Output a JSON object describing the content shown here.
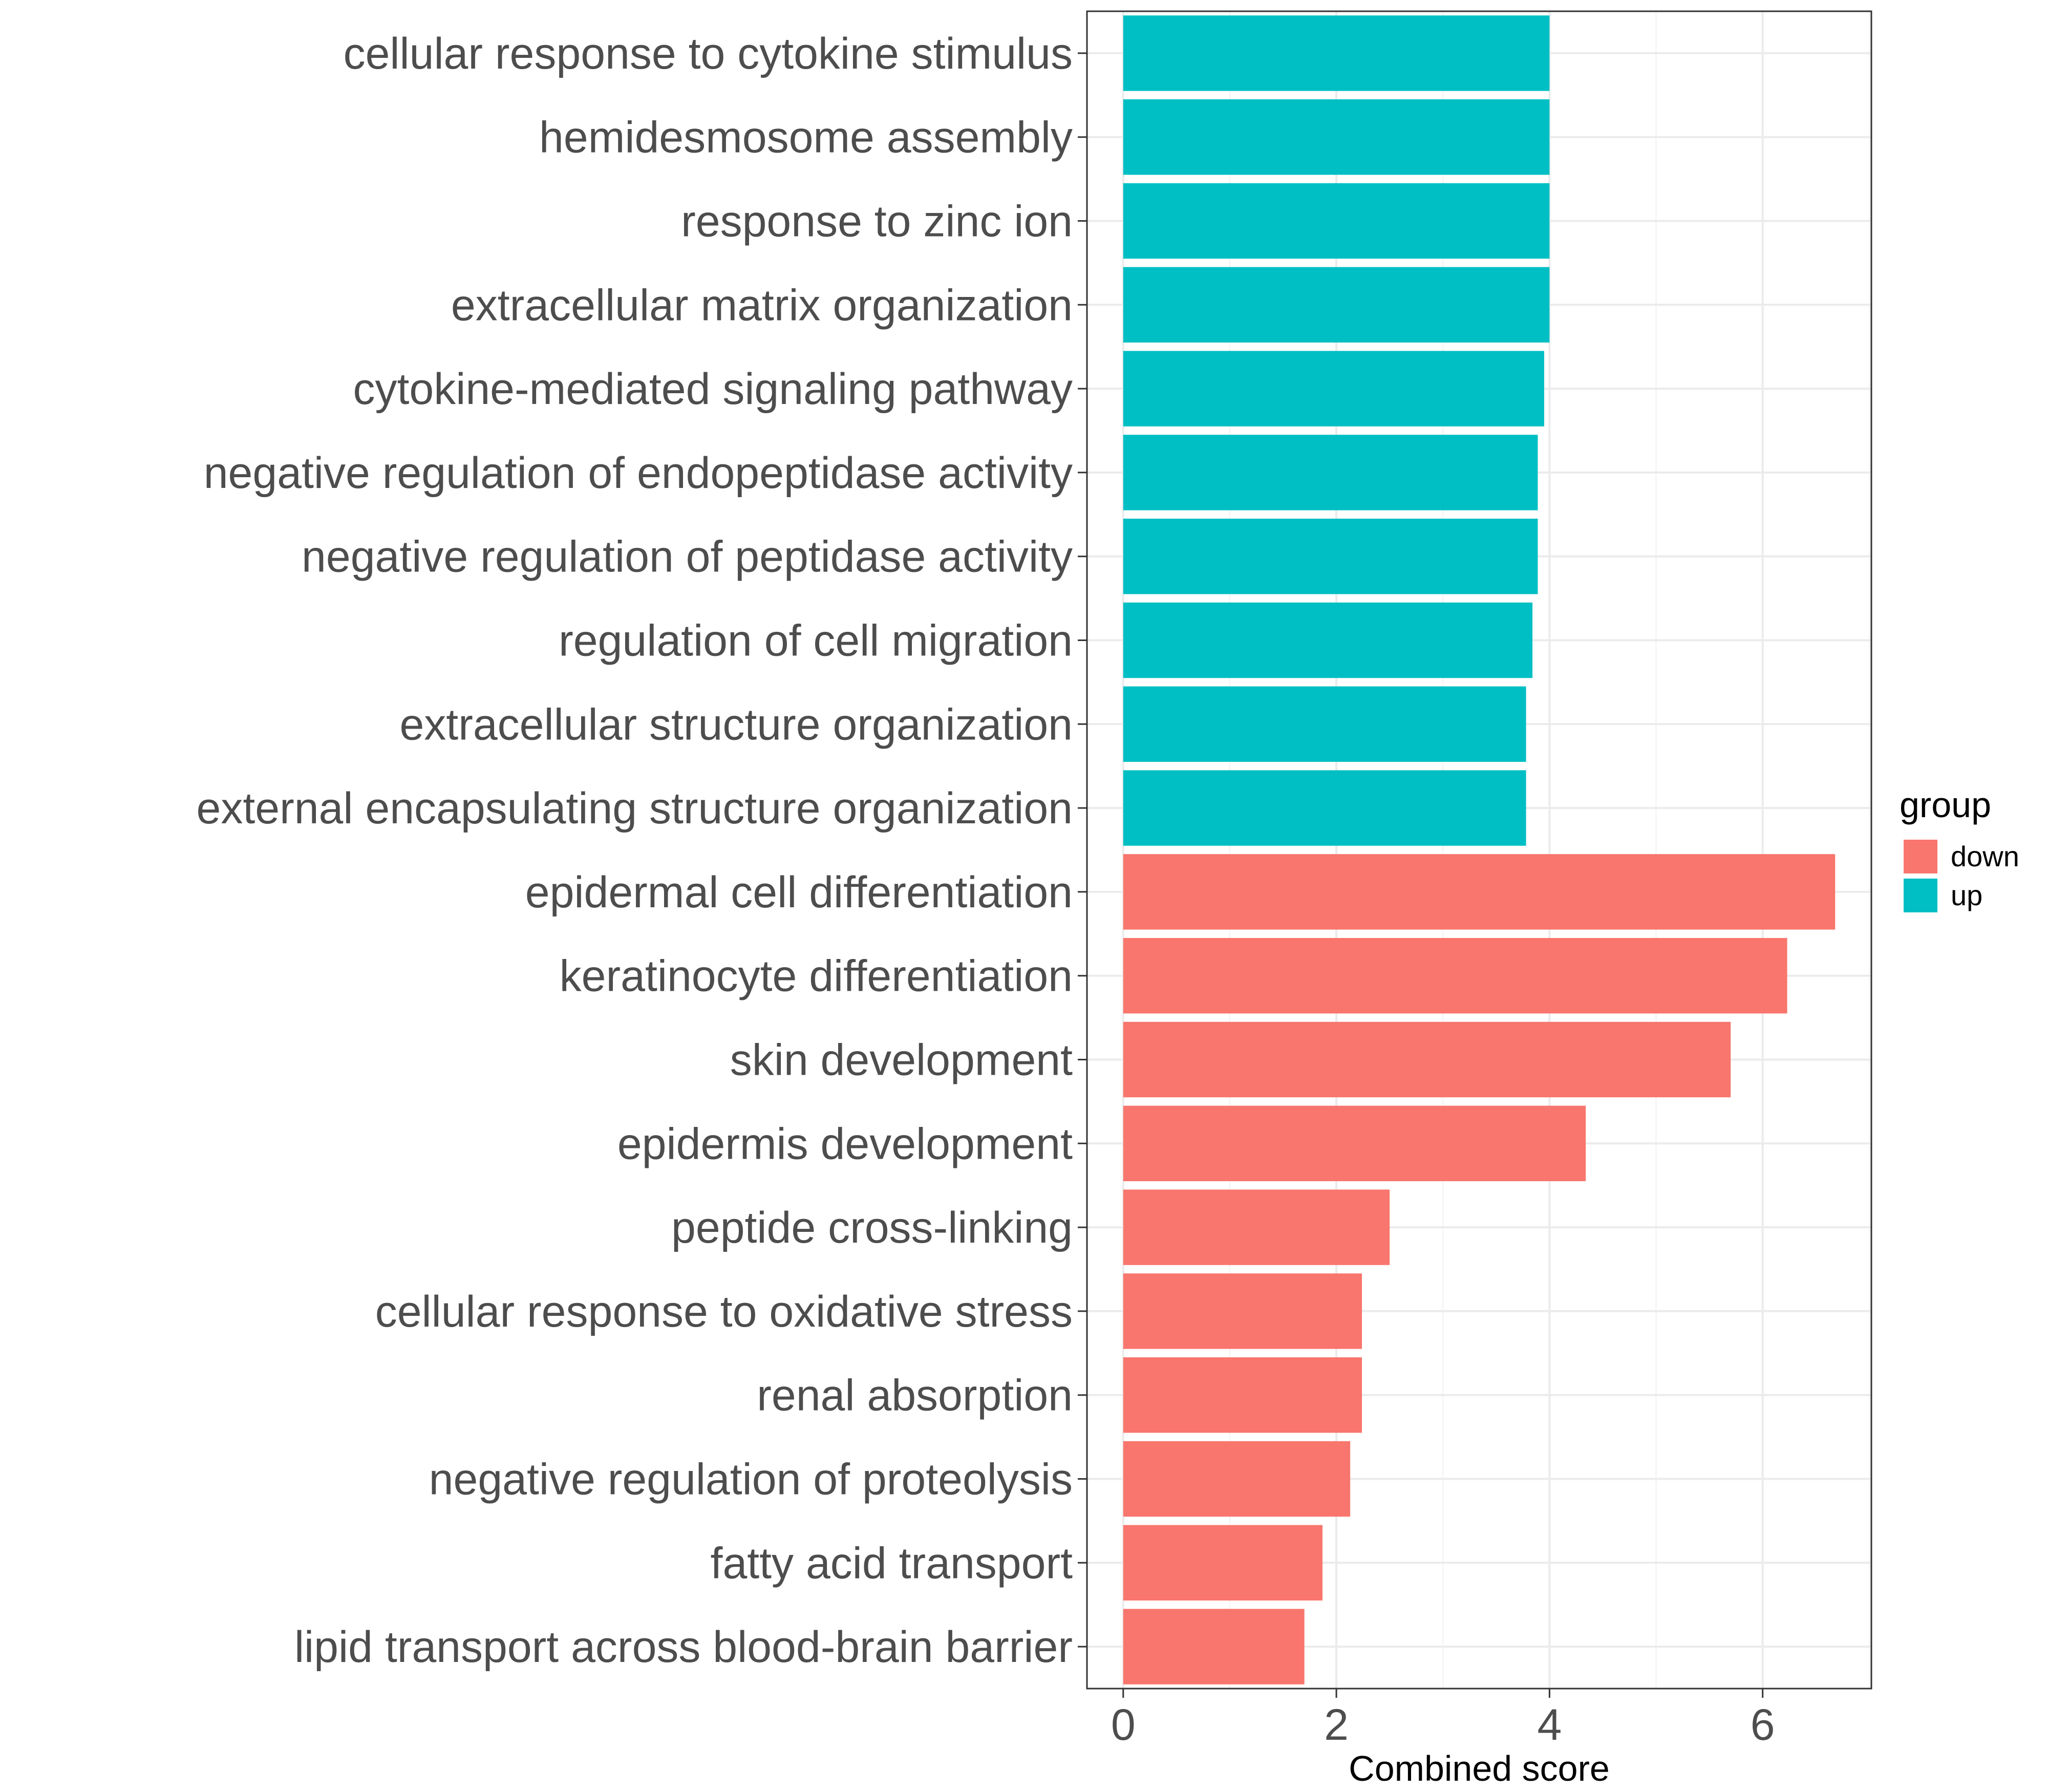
{
  "chart_data": {
    "type": "bar",
    "orientation": "horizontal",
    "xlabel": "Combined score",
    "ylabel": "",
    "xlim": [
      -0.34,
      7.02
    ],
    "xticks": [
      0,
      2,
      4,
      6
    ],
    "tick_labels": [
      "0",
      "2",
      "4",
      "6"
    ],
    "grid": true,
    "legend": {
      "title": "group",
      "placement": "right",
      "entries": [
        {
          "label": "down",
          "color": "#F8766D"
        },
        {
          "label": "up",
          "color": "#00BFC4"
        }
      ]
    },
    "categories": [
      "cellular response to cytokine stimulus",
      "hemidesmosome assembly",
      "response to zinc ion",
      "extracellular matrix organization",
      "cytokine-mediated signaling pathway",
      "negative regulation of endopeptidase activity",
      "negative regulation of peptidase activity",
      "regulation of cell migration",
      "extracellular structure organization",
      "external encapsulating structure organization",
      "epidermal cell differentiation",
      "keratinocyte differentiation",
      "skin development",
      "epidermis development",
      "peptide cross-linking",
      "cellular response to oxidative stress",
      "renal absorption",
      "negative regulation of proteolysis",
      "fatty acid transport",
      "lipid transport across blood-brain barrier"
    ],
    "values": [
      4.0,
      4.0,
      4.0,
      4.0,
      3.95,
      3.89,
      3.89,
      3.84,
      3.78,
      3.78,
      6.68,
      6.23,
      5.7,
      4.34,
      2.5,
      2.24,
      2.24,
      2.13,
      1.87,
      1.7
    ],
    "groups": [
      "up",
      "up",
      "up",
      "up",
      "up",
      "up",
      "up",
      "up",
      "up",
      "up",
      "down",
      "down",
      "down",
      "down",
      "down",
      "down",
      "down",
      "down",
      "down",
      "down"
    ]
  }
}
